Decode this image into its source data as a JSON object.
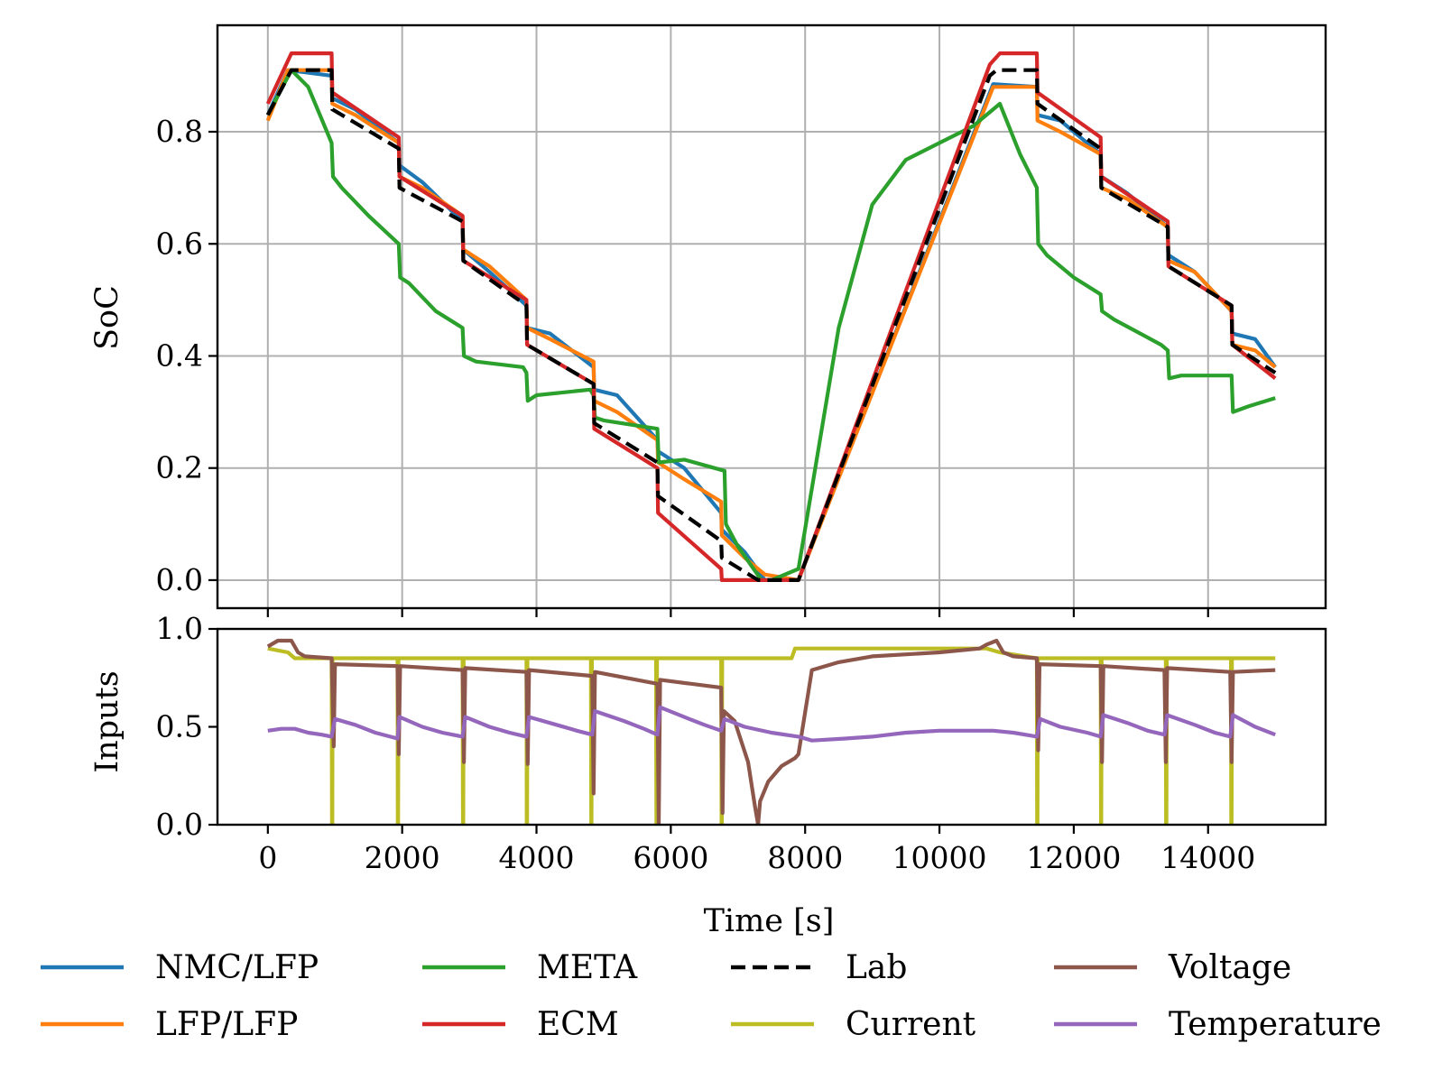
{
  "chart_data": [
    {
      "type": "line",
      "title": "",
      "xlabel": "",
      "ylabel": "SoC",
      "xlim": [
        -750,
        15750
      ],
      "ylim": [
        -0.05,
        0.99
      ],
      "x_ticks": [
        0,
        2000,
        4000,
        6000,
        8000,
        10000,
        12000,
        14000
      ],
      "y_ticks": [
        0.0,
        0.2,
        0.4,
        0.6,
        0.8
      ],
      "y_tick_labels": [
        "0.0",
        "0.2",
        "0.4",
        "0.6",
        "0.8"
      ],
      "grid": true,
      "series": [
        {
          "name": "NMC/LFP",
          "color": "#1f77b4",
          "dash": "solid",
          "x": [
            0,
            300,
            950,
            960,
            1300,
            1950,
            1960,
            2300,
            2900,
            2910,
            3300,
            3850,
            3860,
            4200,
            4850,
            4860,
            5200,
            5800,
            5810,
            6200,
            6750,
            6760,
            7100,
            7400,
            7900,
            10800,
            11450,
            11460,
            11800,
            12400,
            12410,
            12800,
            13400,
            13410,
            13800,
            14350,
            14360,
            14700,
            15000
          ],
          "y": [
            0.83,
            0.91,
            0.9,
            0.86,
            0.84,
            0.78,
            0.74,
            0.71,
            0.64,
            0.59,
            0.55,
            0.49,
            0.45,
            0.44,
            0.38,
            0.34,
            0.33,
            0.25,
            0.23,
            0.2,
            0.12,
            0.09,
            0.05,
            0.0,
            0.0,
            0.885,
            0.88,
            0.83,
            0.82,
            0.76,
            0.72,
            0.69,
            0.63,
            0.58,
            0.55,
            0.48,
            0.44,
            0.43,
            0.38
          ]
        },
        {
          "name": "LFP/LFP",
          "color": "#ff7f0e",
          "dash": "solid",
          "x": [
            0,
            300,
            950,
            960,
            1300,
            1950,
            1960,
            2300,
            2900,
            2910,
            3300,
            3850,
            3860,
            4200,
            4850,
            4860,
            5200,
            5800,
            5810,
            6200,
            6750,
            6760,
            7100,
            7400,
            7900,
            10800,
            11450,
            11460,
            11800,
            12400,
            12410,
            12800,
            13400,
            13410,
            13800,
            14350,
            14360,
            14700,
            15000
          ],
          "y": [
            0.82,
            0.91,
            0.91,
            0.85,
            0.83,
            0.78,
            0.72,
            0.7,
            0.65,
            0.59,
            0.56,
            0.5,
            0.45,
            0.43,
            0.39,
            0.32,
            0.3,
            0.25,
            0.21,
            0.18,
            0.14,
            0.08,
            0.04,
            0.01,
            0.0,
            0.88,
            0.88,
            0.82,
            0.8,
            0.76,
            0.7,
            0.68,
            0.63,
            0.57,
            0.55,
            0.48,
            0.42,
            0.41,
            0.38
          ]
        },
        {
          "name": "META",
          "color": "#2ca02c",
          "dash": "solid",
          "x": [
            0,
            350,
            600,
            950,
            970,
            1100,
            1500,
            1950,
            1970,
            2100,
            2500,
            2900,
            2920,
            3100,
            3800,
            3850,
            3870,
            4000,
            4800,
            4850,
            4870,
            5000,
            5800,
            5820,
            6200,
            6800,
            6820,
            7000,
            7350,
            7500,
            7900,
            8500,
            9000,
            9500,
            10000,
            10500,
            10900,
            11200,
            11450,
            11470,
            11600,
            12000,
            12400,
            12420,
            12600,
            13300,
            13400,
            13420,
            13600,
            14300,
            14350,
            14370,
            14600,
            15000
          ],
          "y": [
            0.83,
            0.91,
            0.88,
            0.78,
            0.72,
            0.7,
            0.65,
            0.6,
            0.54,
            0.53,
            0.48,
            0.45,
            0.4,
            0.39,
            0.38,
            0.37,
            0.32,
            0.33,
            0.34,
            0.33,
            0.29,
            0.285,
            0.27,
            0.21,
            0.215,
            0.195,
            0.1,
            0.06,
            0.0,
            0.0,
            0.02,
            0.45,
            0.67,
            0.75,
            0.78,
            0.81,
            0.85,
            0.76,
            0.7,
            0.6,
            0.58,
            0.54,
            0.51,
            0.48,
            0.465,
            0.42,
            0.41,
            0.36,
            0.365,
            0.365,
            0.365,
            0.3,
            0.31,
            0.325
          ]
        },
        {
          "name": "ECM",
          "color": "#d62728",
          "dash": "solid",
          "x": [
            0,
            350,
            950,
            960,
            1950,
            1960,
            2900,
            2910,
            3850,
            3860,
            4850,
            4860,
            5800,
            5810,
            6750,
            6760,
            7900,
            10750,
            10900,
            11450,
            11460,
            12400,
            12410,
            13400,
            13410,
            14350,
            14360,
            15000
          ],
          "y": [
            0.85,
            0.94,
            0.94,
            0.87,
            0.79,
            0.72,
            0.65,
            0.57,
            0.5,
            0.42,
            0.35,
            0.27,
            0.2,
            0.12,
            0.02,
            0.0,
            0.0,
            0.92,
            0.94,
            0.94,
            0.87,
            0.79,
            0.72,
            0.64,
            0.56,
            0.49,
            0.42,
            0.36
          ]
        },
        {
          "name": "Lab",
          "color": "#000000",
          "dash": "dashed",
          "x": [
            0,
            350,
            950,
            960,
            1950,
            1960,
            2900,
            2910,
            3850,
            3860,
            4850,
            4860,
            5800,
            5810,
            6750,
            6760,
            7300,
            7900,
            10750,
            10850,
            11450,
            11460,
            12400,
            12410,
            13400,
            13410,
            14350,
            14360,
            15000
          ],
          "y": [
            0.83,
            0.91,
            0.91,
            0.84,
            0.77,
            0.7,
            0.64,
            0.57,
            0.49,
            0.42,
            0.35,
            0.28,
            0.21,
            0.15,
            0.07,
            0.04,
            0.0,
            0.0,
            0.9,
            0.91,
            0.91,
            0.85,
            0.77,
            0.7,
            0.63,
            0.56,
            0.49,
            0.42,
            0.37
          ]
        }
      ]
    },
    {
      "type": "line",
      "title": "",
      "xlabel": "Time [s]",
      "ylabel": "Inputs",
      "xlim": [
        -750,
        15750
      ],
      "ylim": [
        0.0,
        1.0
      ],
      "x_ticks": [
        0,
        2000,
        4000,
        6000,
        8000,
        10000,
        12000,
        14000
      ],
      "x_tick_labels": [
        "0",
        "2000",
        "4000",
        "6000",
        "8000",
        "10000",
        "12000",
        "14000"
      ],
      "y_ticks": [
        0.0,
        0.5,
        1.0
      ],
      "y_tick_labels": [
        "0.0",
        "0.5",
        "1.0"
      ],
      "grid": false,
      "series": [
        {
          "name": "Current",
          "color": "#bcbd22",
          "dash": "solid",
          "x": [
            0,
            300,
            400,
            950,
            955,
            960,
            965,
            1930,
            1935,
            1940,
            1945,
            2900,
            2905,
            2910,
            2915,
            3850,
            3855,
            3860,
            3865,
            4810,
            4815,
            4820,
            4825,
            5780,
            5785,
            5790,
            5795,
            6750,
            6755,
            6760,
            6765,
            7300,
            7800,
            7850,
            10700,
            10900,
            11450,
            11455,
            11460,
            11465,
            12400,
            12405,
            12410,
            12415,
            13370,
            13375,
            13380,
            13385,
            14340,
            14345,
            14350,
            14355,
            15000
          ],
          "y": [
            0.9,
            0.88,
            0.85,
            0.85,
            0.0,
            0.0,
            0.85,
            0.85,
            0.0,
            0.0,
            0.85,
            0.85,
            0.0,
            0.0,
            0.85,
            0.85,
            0.0,
            0.0,
            0.85,
            0.85,
            0.0,
            0.0,
            0.85,
            0.85,
            0.0,
            0.0,
            0.85,
            0.85,
            0.0,
            0.0,
            0.85,
            0.85,
            0.85,
            0.9,
            0.9,
            0.88,
            0.85,
            0.0,
            0.0,
            0.85,
            0.85,
            0.0,
            0.0,
            0.85,
            0.85,
            0.0,
            0.0,
            0.85,
            0.85,
            0.0,
            0.0,
            0.85,
            0.85
          ]
        },
        {
          "name": "Voltage",
          "color": "#8c564b",
          "dash": "solid",
          "x": [
            0,
            150,
            350,
            450,
            550,
            950,
            980,
            1000,
            1930,
            1950,
            1970,
            2900,
            2920,
            2940,
            3850,
            3870,
            3890,
            4830,
            4850,
            4870,
            5800,
            5820,
            5840,
            6750,
            6770,
            6790,
            6950,
            7150,
            7250,
            7300,
            7330,
            7450,
            7650,
            7850,
            7900,
            8100,
            8500,
            9000,
            10000,
            10600,
            10700,
            10850,
            10950,
            11100,
            11450,
            11470,
            11490,
            12400,
            12420,
            12440,
            13350,
            13370,
            13390,
            14330,
            14350,
            14370,
            15000
          ],
          "y": [
            0.91,
            0.94,
            0.94,
            0.88,
            0.86,
            0.85,
            0.4,
            0.82,
            0.81,
            0.36,
            0.81,
            0.79,
            0.32,
            0.8,
            0.78,
            0.31,
            0.79,
            0.76,
            0.16,
            0.78,
            0.72,
            0.0,
            0.74,
            0.7,
            0.06,
            0.58,
            0.53,
            0.32,
            0.1,
            0.0,
            0.12,
            0.22,
            0.3,
            0.34,
            0.36,
            0.79,
            0.83,
            0.86,
            0.88,
            0.9,
            0.92,
            0.94,
            0.88,
            0.86,
            0.85,
            0.38,
            0.82,
            0.81,
            0.32,
            0.81,
            0.79,
            0.32,
            0.8,
            0.78,
            0.32,
            0.78,
            0.79
          ]
        },
        {
          "name": "Temperature",
          "color": "#9467bd",
          "dash": "solid",
          "x": [
            0,
            200,
            400,
            600,
            800,
            950,
            1000,
            1300,
            1600,
            1930,
            1960,
            2300,
            2600,
            2900,
            2940,
            3300,
            3600,
            3850,
            3890,
            4300,
            4600,
            4830,
            4870,
            5300,
            5600,
            5800,
            5840,
            6200,
            6500,
            6750,
            6800,
            7100,
            7500,
            7900,
            8100,
            8600,
            9000,
            9500,
            10000,
            10800,
            11100,
            11450,
            11500,
            11800,
            12200,
            12400,
            12440,
            12800,
            13100,
            13350,
            13390,
            13800,
            14100,
            14330,
            14370,
            14700,
            15000
          ],
          "y": [
            0.48,
            0.49,
            0.49,
            0.47,
            0.46,
            0.45,
            0.54,
            0.51,
            0.47,
            0.44,
            0.55,
            0.5,
            0.47,
            0.45,
            0.55,
            0.5,
            0.47,
            0.45,
            0.55,
            0.51,
            0.48,
            0.46,
            0.58,
            0.53,
            0.49,
            0.46,
            0.6,
            0.55,
            0.51,
            0.48,
            0.54,
            0.5,
            0.47,
            0.45,
            0.43,
            0.44,
            0.45,
            0.47,
            0.48,
            0.48,
            0.47,
            0.45,
            0.54,
            0.5,
            0.47,
            0.45,
            0.56,
            0.52,
            0.48,
            0.46,
            0.56,
            0.51,
            0.47,
            0.45,
            0.56,
            0.5,
            0.46
          ]
        }
      ]
    }
  ],
  "legend": {
    "placement": "bottom",
    "entries": [
      {
        "label": "NMC/LFP",
        "color": "#1f77b4",
        "dash": "solid"
      },
      {
        "label": "META",
        "color": "#2ca02c",
        "dash": "solid"
      },
      {
        "label": "Lab",
        "color": "#000000",
        "dash": "dashed"
      },
      {
        "label": "Voltage",
        "color": "#8c564b",
        "dash": "solid"
      },
      {
        "label": "LFP/LFP",
        "color": "#ff7f0e",
        "dash": "solid"
      },
      {
        "label": "ECM",
        "color": "#d62728",
        "dash": "solid"
      },
      {
        "label": "Current",
        "color": "#bcbd22",
        "dash": "solid"
      },
      {
        "label": "Temperature",
        "color": "#9467bd",
        "dash": "solid"
      }
    ]
  }
}
